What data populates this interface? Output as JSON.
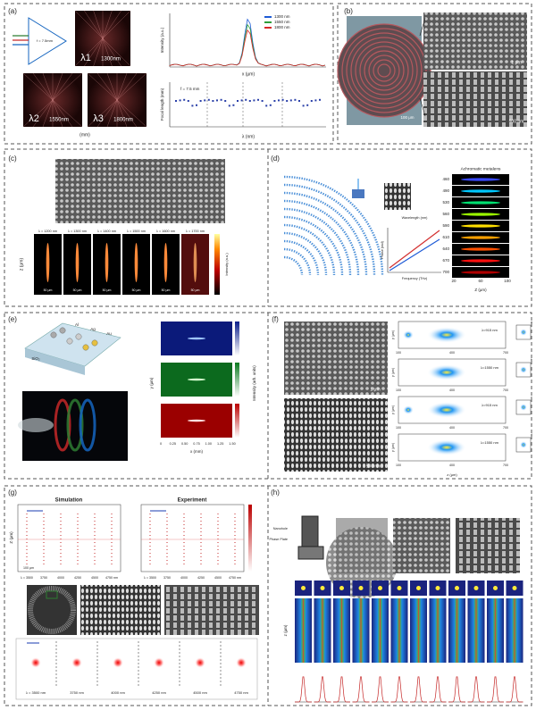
{
  "a": {
    "label": "(a)",
    "f_diagram": "f = 7.5mm",
    "lambda1": "λ1",
    "lambda2": "λ2",
    "lambda3": "λ3",
    "img1": "1300nm",
    "img2": "1550nm",
    "img3": "1800nm",
    "mm": "(mm)",
    "legend": [
      "1300 nm",
      "1550 nm",
      "1800 nm"
    ],
    "intensity_axis": "Intensity (a.u.)",
    "x_axis": "x (μm)",
    "focal_axis": "Focal length (mm)",
    "lambda_axis": "λ (nm)",
    "f_plot": "f = 7.5 mm"
  },
  "b": {
    "label": "(b)",
    "scale1": "1 μm",
    "scale2": "500 nm",
    "scale3": "100 μm"
  },
  "c": {
    "label": "(c)",
    "wavelengths": [
      "λ = 1200 nm",
      "λ = 1300 nm",
      "λ = 1400 nm",
      "λ = 1500 nm",
      "λ = 1600 nm",
      "λ = 1700 nm"
    ],
    "scale": "50 μm",
    "z_axis": "z (μm)",
    "colorbar": "Intensity (a.u.)"
  },
  "d": {
    "label": "(d)",
    "title": "Achromatic metalens",
    "wavelengths": [
      "460",
      "490",
      "530",
      "560",
      "590",
      "610",
      "640",
      "670",
      "700"
    ],
    "z_axis": "Z (μm)",
    "z_ticks": [
      "20",
      "60",
      "100"
    ],
    "wl_axis": "Wavelength (nm)",
    "phase_axis": "Phase (rad)",
    "freq_axis": "Frequency (THz)"
  },
  "e": {
    "label": "(e)",
    "metals": [
      "Al",
      "Ag",
      "Au"
    ],
    "substrate": "SiO₂",
    "x_axis": "x (mm)",
    "y_axis": "y (μm)",
    "colorbar": "Intensity (arb. units)",
    "x_ticks": [
      "0",
      "0.25",
      "0.50",
      "0.75",
      "1.00",
      "1.25",
      "1.50"
    ]
  },
  "f": {
    "label": "(f)",
    "scale1": "1 μm",
    "scale2": "500 nm",
    "rows": [
      "λ=915 nm",
      "λ=1550 nm",
      "λ=915 nm",
      "λ=1550 nm"
    ],
    "x_ticks": [
      "100",
      "400",
      "700"
    ],
    "z_axis": "z (μm)",
    "y_axis": "y (μm)",
    "sub": [
      "a",
      "b",
      "c",
      "d"
    ]
  },
  "g": {
    "label": "(g)",
    "simulation": "Simulation",
    "experiment": "Experiment",
    "z_axis": "Z (μm)",
    "scale": "100 μm",
    "axis_lambdas": [
      "λ = 3500",
      "3750",
      "4000",
      "4250",
      "4500",
      "4750 nm"
    ],
    "spots": [
      "λ = 3500 nm",
      "3750 nm",
      "4000 nm",
      "4250 nm",
      "4500 nm",
      "4750 nm"
    ]
  },
  "h": {
    "label": "(h)",
    "nanohole": "Nanohole",
    "phase_plate": "Phase Plate",
    "z_axis": "z (μm)"
  }
}
